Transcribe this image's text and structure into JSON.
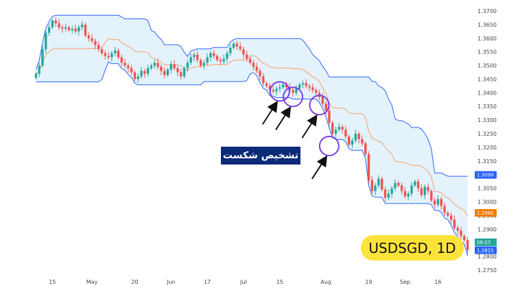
{
  "chart_data": {
    "type": "candlestick",
    "symbol_label": "USDSGD, 1D",
    "annotation": "تشخیص شکست",
    "y_ticks": [
      "1.3700",
      "1.3650",
      "1.3600",
      "1.3550",
      "1.3500",
      "1.3450",
      "1.3400",
      "1.3350",
      "1.3300",
      "1.3250",
      "1.3200",
      "1.3150",
      "1.3100",
      "1.3050",
      "1.3000",
      "1.2950",
      "1.2900",
      "1.2850",
      "1.2800",
      "1.2750"
    ],
    "ylim": [
      1.2745,
      1.3715
    ],
    "x_ticks": [
      {
        "label": "15",
        "index": 5
      },
      {
        "label": "May",
        "index": 17
      },
      {
        "label": "20",
        "index": 30
      },
      {
        "label": "Jun",
        "index": 41
      },
      {
        "label": "17",
        "index": 52
      },
      {
        "label": "Jul",
        "index": 63
      },
      {
        "label": "15",
        "index": 74
      },
      {
        "label": "Aug",
        "index": 88
      },
      {
        "label": "19",
        "index": 101
      },
      {
        "label": "Sep",
        "index": 112
      },
      {
        "label": "16",
        "index": 122
      }
    ],
    "price_tags": [
      {
        "label": "1.3099",
        "value": 1.3099,
        "color": "#2962ff"
      },
      {
        "label": "1.2960",
        "value": 1.296,
        "color": "#f57c00"
      },
      {
        "label": "06:27",
        "value": 1.2852,
        "color": "#26a69a"
      },
      {
        "label": "1.2823",
        "value": 1.2823,
        "color": "#2962ff"
      }
    ],
    "colors": {
      "up": "#26a69a",
      "down": "#ef5350",
      "upper_band": "#2962ff",
      "lower_band": "#2962ff",
      "mid_line": "#f5a06b",
      "fill": "#dbeefa",
      "marker": "#7b3fe4"
    },
    "markers": [
      {
        "index": 74,
        "value": 1.3405
      },
      {
        "index": 78,
        "value": 1.3385
      },
      {
        "index": 86,
        "value": 1.3355
      },
      {
        "index": 89,
        "value": 1.3205
      }
    ],
    "closes": [
      1.347,
      1.35,
      1.356,
      1.362,
      1.364,
      1.3665,
      1.3655,
      1.364,
      1.3635,
      1.364,
      1.363,
      1.3635,
      1.3625,
      1.364,
      1.365,
      1.361,
      1.36,
      1.359,
      1.3575,
      1.356,
      1.3545,
      1.3535,
      1.353,
      1.3545,
      1.3555,
      1.353,
      1.351,
      1.35,
      1.349,
      1.3475,
      1.345,
      1.346,
      1.348,
      1.347,
      1.349,
      1.35,
      1.351,
      1.3495,
      1.348,
      1.3465,
      1.3485,
      1.3505,
      1.349,
      1.3475,
      1.346,
      1.349,
      1.351,
      1.353,
      1.354,
      1.352,
      1.35,
      1.351,
      1.353,
      1.3545,
      1.3535,
      1.352,
      1.3515,
      1.3525,
      1.3545,
      1.3565,
      1.358,
      1.357,
      1.356,
      1.354,
      1.3525,
      1.351,
      1.3495,
      1.348,
      1.346,
      1.3435,
      1.3425,
      1.341,
      1.3405,
      1.3415,
      1.342,
      1.343,
      1.342,
      1.341,
      1.34,
      1.3415,
      1.343,
      1.3435,
      1.3425,
      1.342,
      1.341,
      1.34,
      1.3385,
      1.336,
      1.3335,
      1.329,
      1.325,
      1.3265,
      1.3275,
      1.3265,
      1.324,
      1.321,
      1.3225,
      1.325,
      1.323,
      1.3215,
      1.3175,
      1.308,
      1.304,
      1.306,
      1.3085,
      1.3045,
      1.3015,
      1.303,
      1.305,
      1.307,
      1.306,
      1.304,
      1.302,
      1.303,
      1.306,
      1.3075,
      1.305,
      1.3025,
      1.3055,
      1.304,
      1.3005,
      1.299,
      1.301,
      1.2985,
      1.296,
      1.295,
      1.2935,
      1.2905,
      1.2895,
      1.2875,
      1.286,
      1.2823
    ]
  }
}
